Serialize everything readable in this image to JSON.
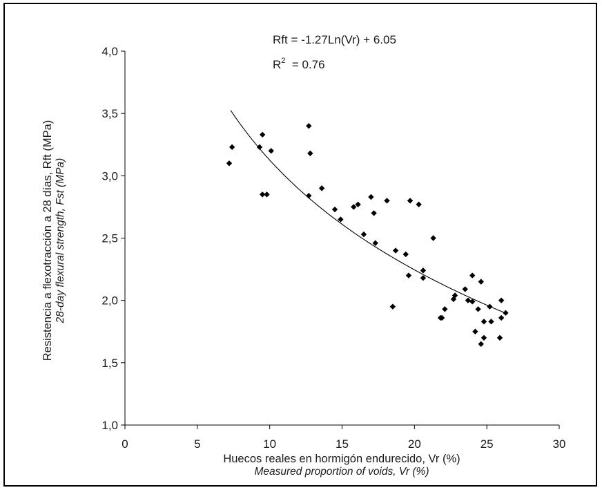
{
  "chart_data": {
    "type": "scatter",
    "xlabel": "Huecos reales en hormigón endurecido, Vr (%)",
    "xlabel_secondary": "Measured proportion of voids, Vr (%)",
    "ylabel": "Resistencia a flexotracción a 28 días, Rft (MPa)",
    "ylabel_secondary": "28-day flexural strength, Fst (MPa)",
    "xlim": [
      0,
      30
    ],
    "ylim": [
      1.0,
      4.0
    ],
    "x_ticks": [
      0,
      5,
      10,
      15,
      20,
      25,
      30
    ],
    "x_tick_labels": [
      "0",
      "5",
      "10",
      "15",
      "20",
      "25",
      "30"
    ],
    "y_ticks": [
      1.0,
      1.5,
      2.0,
      2.5,
      3.0,
      3.5,
      4.0
    ],
    "y_tick_labels": [
      "1,0",
      "1,5",
      "2,0",
      "2,5",
      "3,0",
      "3,5",
      "4,0"
    ],
    "grid": false,
    "legend": "none",
    "marker": "diamond",
    "marker_color": "#000000",
    "trendline": {
      "type": "logarithmic",
      "a": -1.27,
      "b": 6.05,
      "x_range": [
        7.3,
        26.3
      ],
      "equation_label": "Rft = -1.27Ln(Vr) + 6.05",
      "r2_prefix": "R",
      "r2_sup": "2",
      "r2_suffix": "  = 0.76"
    },
    "points": [
      [
        7.2,
        3.1
      ],
      [
        7.4,
        3.23
      ],
      [
        9.3,
        3.23
      ],
      [
        9.5,
        3.33
      ],
      [
        9.5,
        2.85
      ],
      [
        9.8,
        2.85
      ],
      [
        10.1,
        3.2
      ],
      [
        12.7,
        3.4
      ],
      [
        12.8,
        3.18
      ],
      [
        12.7,
        2.84
      ],
      [
        13.6,
        2.9
      ],
      [
        14.5,
        2.73
      ],
      [
        14.9,
        2.65
      ],
      [
        15.8,
        2.75
      ],
      [
        16.1,
        2.77
      ],
      [
        16.5,
        2.53
      ],
      [
        17.0,
        2.83
      ],
      [
        17.2,
        2.7
      ],
      [
        17.3,
        2.46
      ],
      [
        18.1,
        2.8
      ],
      [
        18.5,
        1.95
      ],
      [
        18.7,
        2.4
      ],
      [
        19.4,
        2.37
      ],
      [
        19.7,
        2.8
      ],
      [
        19.6,
        2.2
      ],
      [
        20.3,
        2.77
      ],
      [
        20.6,
        2.24
      ],
      [
        20.6,
        2.18
      ],
      [
        21.3,
        2.5
      ],
      [
        21.8,
        1.86
      ],
      [
        21.9,
        1.86
      ],
      [
        22.1,
        1.93
      ],
      [
        22.7,
        2.01
      ],
      [
        22.8,
        2.04
      ],
      [
        23.5,
        2.09
      ],
      [
        23.7,
        2.0
      ],
      [
        24.0,
        1.99
      ],
      [
        24.0,
        2.2
      ],
      [
        24.2,
        1.75
      ],
      [
        24.4,
        1.93
      ],
      [
        24.6,
        2.15
      ],
      [
        24.6,
        1.65
      ],
      [
        24.8,
        1.83
      ],
      [
        24.8,
        1.7
      ],
      [
        25.2,
        1.95
      ],
      [
        25.3,
        1.83
      ],
      [
        25.9,
        1.7
      ],
      [
        26.0,
        2.0
      ],
      [
        26.0,
        1.86
      ],
      [
        26.3,
        1.9
      ]
    ]
  }
}
